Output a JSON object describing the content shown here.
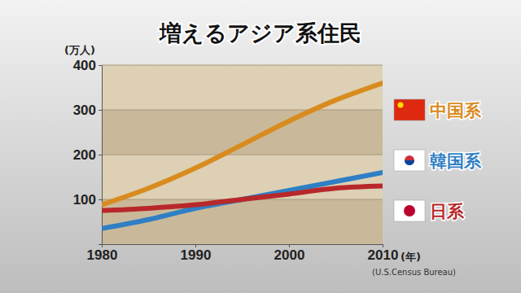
{
  "chart_data": {
    "type": "line",
    "title": "増えるアジア系住民",
    "y_label": "(万人)",
    "x_label": "(年)",
    "source": "(U.S.Census Bureau)",
    "x": [
      1980,
      1985,
      1990,
      1995,
      2000,
      2005,
      2010
    ],
    "xlim": [
      1980,
      2010
    ],
    "xticks": [
      1980,
      1990,
      2000,
      2010
    ],
    "ylim": [
      0,
      400
    ],
    "yticks": [
      100,
      200,
      300,
      400
    ],
    "grid": true,
    "legend": "right",
    "series": [
      {
        "name": "中国系",
        "color": "#d98b1e",
        "values": [
          88,
          125,
          170,
          222,
          275,
          322,
          360
        ]
      },
      {
        "name": "韓国系",
        "color": "#2f7fc4",
        "values": [
          35,
          55,
          80,
          100,
          120,
          140,
          160
        ]
      },
      {
        "name": "日系",
        "color": "#b8282a",
        "values": [
          75,
          80,
          88,
          100,
          112,
          125,
          130
        ]
      }
    ]
  }
}
